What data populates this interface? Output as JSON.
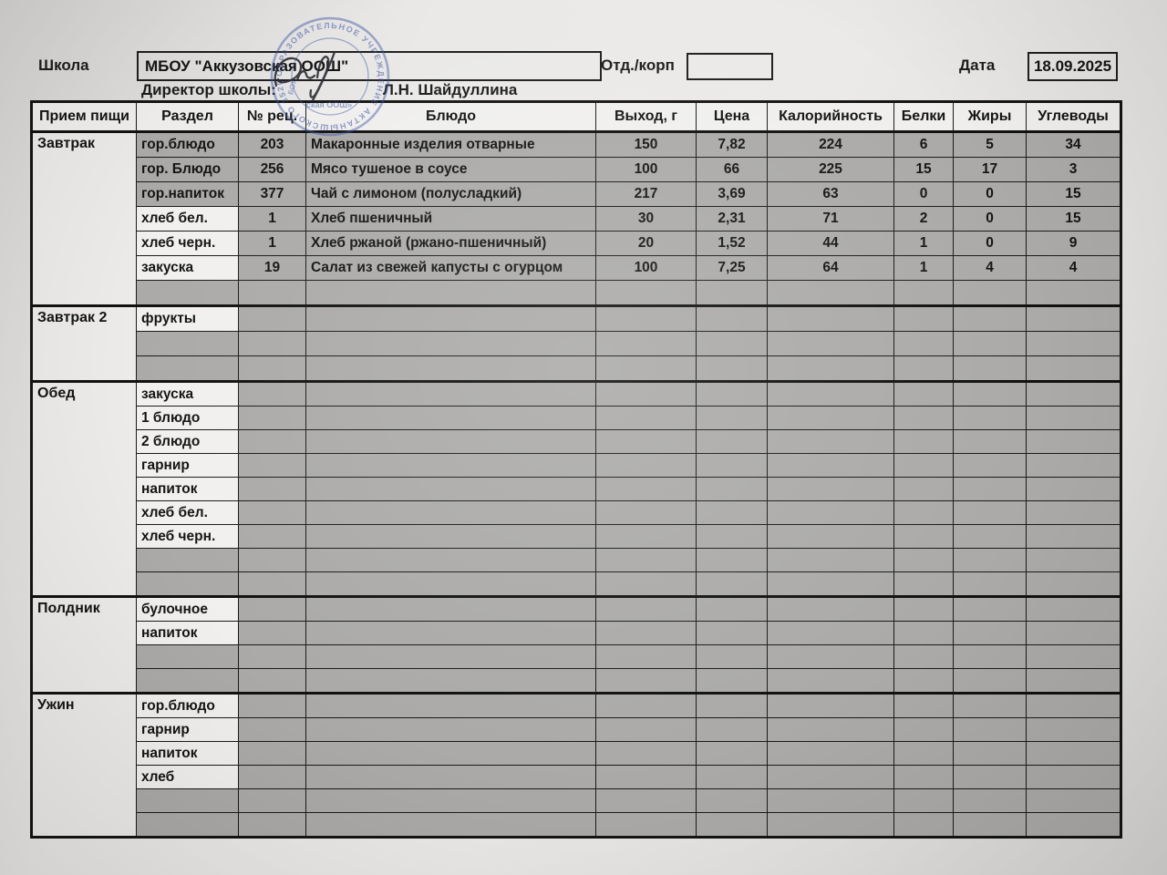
{
  "header": {
    "school_label": "Школа",
    "school_name": "МБОУ \"Аккузовская ООШ\"",
    "dept_label": "Отд./корп",
    "dept_value": "",
    "date_label": "Дата",
    "date_value": "18.09.2025",
    "director_label": "Директор школы:",
    "director_name": "Л.Н. Шайдуллина"
  },
  "stamp": {
    "arc_text": "ОБРАЗОВАТЕЛЬНОЕ УЧРЕЖДЕНИЕ  АКТАНЫШСКОГО  3520277",
    "inner_text": "ская ООШ»",
    "inner_text2": "БОУ",
    "color": "#3b54a4"
  },
  "table": {
    "columns": [
      "Прием пищи",
      "Раздел",
      "№ рец.",
      "Блюдо",
      "Выход, г",
      "Цена",
      "Калорийность",
      "Белки",
      "Жиры",
      "Углеводы"
    ],
    "sections": [
      {
        "meal": "Завтрак",
        "gray_label_rows": [
          0,
          1,
          2
        ],
        "rows": [
          [
            "гор.блюдо",
            "203",
            "Макаронные изделия отварные",
            "150",
            "7,82",
            "224",
            "6",
            "5",
            "34"
          ],
          [
            "гор. Блюдо",
            "256",
            "Мясо тушеное в соусе",
            "100",
            "66",
            "225",
            "15",
            "17",
            "3"
          ],
          [
            "гор.напиток",
            "377",
            "Чай с лимоном (полусладкий)",
            "217",
            "3,69",
            "63",
            "0",
            "0",
            "15"
          ],
          [
            "хлеб бел.",
            "1",
            "Хлеб пшеничный",
            "30",
            "2,31",
            "71",
            "2",
            "0",
            "15"
          ],
          [
            "хлеб черн.",
            "1",
            "Хлеб ржаной (ржано-пшеничный)",
            "20",
            "1,52",
            "44",
            "1",
            "0",
            "9"
          ],
          [
            "закуска",
            "19",
            "Салат из свежей капусты с огурцом",
            "100",
            "7,25",
            "64",
            "1",
            "4",
            "4"
          ],
          [
            "",
            "",
            "",
            "",
            "",
            "",
            "",
            "",
            ""
          ]
        ]
      },
      {
        "meal": "Завтрак 2",
        "gray_label_rows": [],
        "rows": [
          [
            "фрукты",
            "",
            "",
            "",
            "",
            "",
            "",
            "",
            ""
          ],
          [
            "",
            "",
            "",
            "",
            "",
            "",
            "",
            "",
            ""
          ],
          [
            "",
            "",
            "",
            "",
            "",
            "",
            "",
            "",
            ""
          ]
        ]
      },
      {
        "meal": "Обед",
        "gray_label_rows": [],
        "rows": [
          [
            "закуска",
            "",
            "",
            "",
            "",
            "",
            "",
            "",
            ""
          ],
          [
            "1 блюдо",
            "",
            "",
            "",
            "",
            "",
            "",
            "",
            ""
          ],
          [
            "2 блюдо",
            "",
            "",
            "",
            "",
            "",
            "",
            "",
            ""
          ],
          [
            "гарнир",
            "",
            "",
            "",
            "",
            "",
            "",
            "",
            ""
          ],
          [
            "напиток",
            "",
            "",
            "",
            "",
            "",
            "",
            "",
            ""
          ],
          [
            "хлеб бел.",
            "",
            "",
            "",
            "",
            "",
            "",
            "",
            ""
          ],
          [
            "хлеб черн.",
            "",
            "",
            "",
            "",
            "",
            "",
            "",
            ""
          ],
          [
            "",
            "",
            "",
            "",
            "",
            "",
            "",
            "",
            ""
          ],
          [
            "",
            "",
            "",
            "",
            "",
            "",
            "",
            "",
            ""
          ]
        ]
      },
      {
        "meal": "Полдник",
        "gray_label_rows": [],
        "rows": [
          [
            "булочное",
            "",
            "",
            "",
            "",
            "",
            "",
            "",
            ""
          ],
          [
            "напиток",
            "",
            "",
            "",
            "",
            "",
            "",
            "",
            ""
          ],
          [
            "",
            "",
            "",
            "",
            "",
            "",
            "",
            "",
            ""
          ],
          [
            "",
            "",
            "",
            "",
            "",
            "",
            "",
            "",
            ""
          ]
        ]
      },
      {
        "meal": "Ужин",
        "gray_label_rows": [],
        "rows": [
          [
            "гор.блюдо",
            "",
            "",
            "",
            "",
            "",
            "",
            "",
            ""
          ],
          [
            "гарнир",
            "",
            "",
            "",
            "",
            "",
            "",
            "",
            ""
          ],
          [
            "напиток",
            "",
            "",
            "",
            "",
            "",
            "",
            "",
            ""
          ],
          [
            "хлеб",
            "",
            "",
            "",
            "",
            "",
            "",
            "",
            ""
          ],
          [
            "",
            "",
            "",
            "",
            "",
            "",
            "",
            "",
            ""
          ],
          [
            "",
            "",
            "",
            "",
            "",
            "",
            "",
            "",
            ""
          ]
        ]
      }
    ]
  }
}
